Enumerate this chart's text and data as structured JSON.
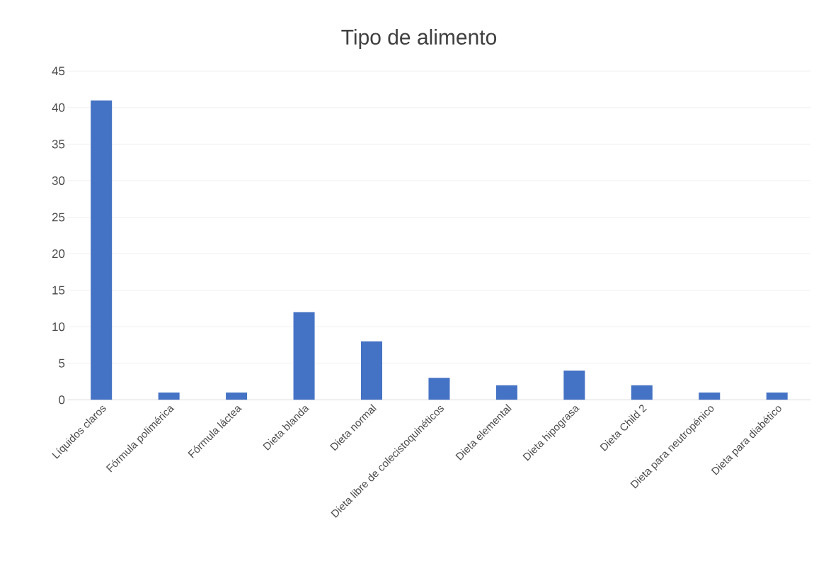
{
  "chart_data": {
    "type": "bar",
    "title": "Tipo de alimento",
    "categories": [
      "Líquidos claros",
      "Fórmula polimérica",
      "Fórmula láctea",
      "Dieta blanda",
      "Dieta normal",
      "Dieta libre de colecistoquinéticos",
      "Dieta elemental",
      "Dieta hipograsa",
      "Dieta Child 2",
      "Dieta para neutropénico",
      "Dieta para diabético"
    ],
    "values": [
      41,
      1,
      1,
      12,
      8,
      3,
      2,
      4,
      2,
      1,
      1
    ],
    "color": "#4472c4",
    "ylim": [
      0,
      45
    ],
    "yticks": [
      0,
      5,
      10,
      15,
      20,
      25,
      30,
      35,
      40,
      45
    ],
    "grid": "y"
  }
}
